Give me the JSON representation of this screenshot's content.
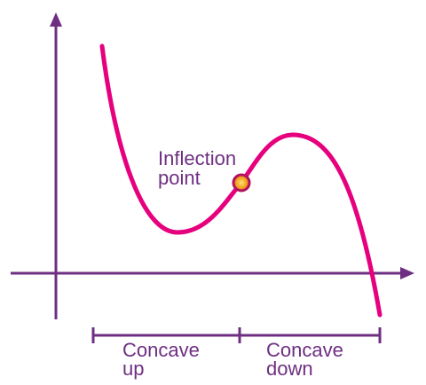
{
  "labels": {
    "inflection": [
      "Inflection",
      "point"
    ],
    "concave_up": [
      "Concave",
      "up"
    ],
    "concave_down": [
      "Concave",
      "down"
    ]
  }
}
